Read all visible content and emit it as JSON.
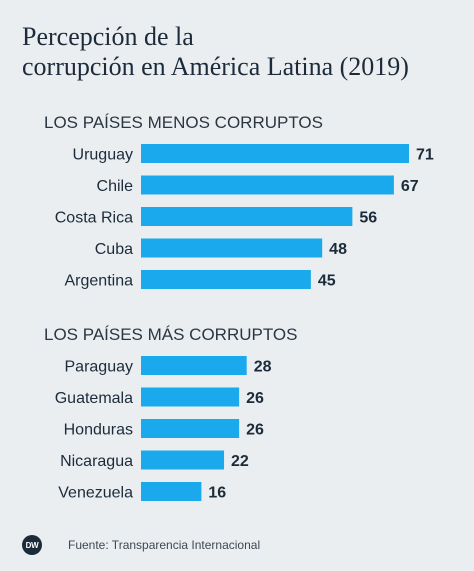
{
  "title_line1": "Percepción de la",
  "title_line2": "corrupción en América Latina (2019)",
  "source": "Fuente: Transparencia Internacional",
  "logo_text": "DW",
  "colors": {
    "bar": "#1aa9ec",
    "background": "#ebeef1",
    "text": "#1c2b3a"
  },
  "chart_data": [
    {
      "type": "bar",
      "orientation": "horizontal",
      "title": "LOS PAÍSES MENOS CORRUPTOS",
      "categories": [
        "Uruguay",
        "Chile",
        "Costa Rica",
        "Cuba",
        "Argentina"
      ],
      "values": [
        71,
        67,
        56,
        48,
        45
      ],
      "xlim": [
        0,
        71
      ]
    },
    {
      "type": "bar",
      "orientation": "horizontal",
      "title": "LOS PAÍSES MÁS CORRUPTOS",
      "categories": [
        "Paraguay",
        "Guatemala",
        "Honduras",
        "Nicaragua",
        "Venezuela"
      ],
      "values": [
        28,
        26,
        26,
        22,
        16
      ],
      "xlim": [
        0,
        71
      ]
    }
  ]
}
